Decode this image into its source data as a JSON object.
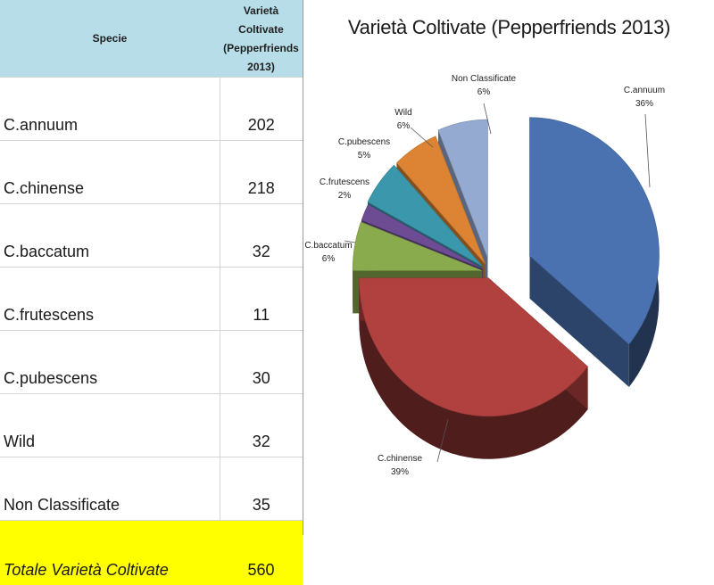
{
  "table": {
    "header": {
      "species": "Specie",
      "count_line1": "Varietà Coltivate",
      "count_line2": "(Pepperfriends",
      "count_line3": "2013)"
    },
    "rows": [
      {
        "name": "C.annuum",
        "value": "202"
      },
      {
        "name": "C.chinense",
        "value": "218"
      },
      {
        "name": "C.baccatum",
        "value": "32"
      },
      {
        "name": "C.frutescens",
        "value": "11"
      },
      {
        "name": "C.pubescens",
        "value": "30"
      },
      {
        "name": "Wild",
        "value": "32"
      },
      {
        "name": "Non Classificate",
        "value": "35"
      }
    ],
    "total": {
      "name": "Totale Varietà Coltivate",
      "value": "560"
    },
    "colors": {
      "header_bg": "#b7dde8",
      "total_bg": "#ffff00"
    }
  },
  "chart_data": {
    "type": "pie",
    "title": "Varietà Coltivate (Pepperfriends 2013)",
    "style": "3d-exploded",
    "slices": [
      {
        "label": "C.annuum",
        "value": 202,
        "percent": "36%",
        "color": "#4a72b0"
      },
      {
        "label": "C.chinense",
        "value": 218,
        "percent": "39%",
        "color": "#b0413e"
      },
      {
        "label": "C.baccatum",
        "value": 32,
        "percent": "6%",
        "color": "#8aaa4e"
      },
      {
        "label": "C.frutescens",
        "value": 11,
        "percent": "2%",
        "color": "#6d4c93"
      },
      {
        "label": "C.pubescens",
        "value": 30,
        "percent": "5%",
        "color": "#3b97ab"
      },
      {
        "label": "Wild",
        "value": 32,
        "percent": "6%",
        "color": "#dc8434"
      },
      {
        "label": "Non Classificate",
        "value": 35,
        "percent": "6%",
        "color": "#94aad0"
      }
    ]
  }
}
